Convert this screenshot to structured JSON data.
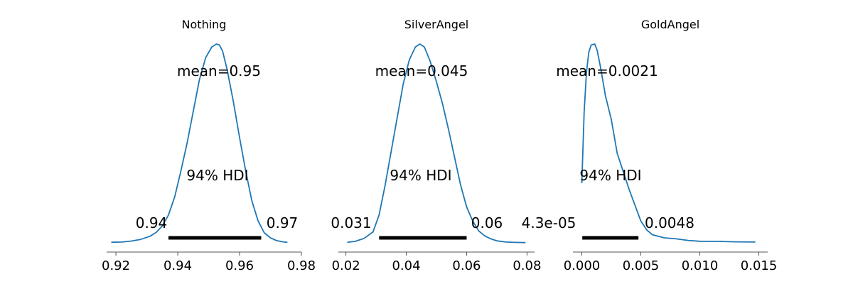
{
  "chart_data": [
    {
      "type": "area",
      "title": "Nothing",
      "mean_label": "mean=0.95",
      "hdi_label": "94% HDI",
      "hdi": {
        "low": 0.937,
        "high": 0.967,
        "low_label": "0.94",
        "high_label": "0.97"
      },
      "xlim": [
        0.917,
        0.98
      ],
      "xticks": [
        0.92,
        0.94,
        0.96,
        0.98
      ],
      "xtick_labels": [
        "0.92",
        "0.94",
        "0.96",
        "0.98"
      ],
      "density": {
        "x": [
          0.9185,
          0.922,
          0.925,
          0.928,
          0.931,
          0.933,
          0.935,
          0.937,
          0.939,
          0.941,
          0.943,
          0.945,
          0.947,
          0.949,
          0.951,
          0.9525,
          0.9535,
          0.9545,
          0.956,
          0.958,
          0.96,
          0.962,
          0.964,
          0.966,
          0.968,
          0.97,
          0.972,
          0.974,
          0.9755
        ],
        "y": [
          0.003,
          0.004,
          0.009,
          0.017,
          0.033,
          0.052,
          0.085,
          0.14,
          0.23,
          0.36,
          0.5,
          0.66,
          0.82,
          0.93,
          0.985,
          1.0,
          0.995,
          0.965,
          0.87,
          0.71,
          0.53,
          0.36,
          0.21,
          0.11,
          0.05,
          0.025,
          0.011,
          0.005,
          0.002
        ]
      },
      "ylim": [
        0,
        1.0
      ]
    },
    {
      "type": "area",
      "title": "SilverAngel",
      "mean_label": "mean=0.045",
      "hdi_label": "94% HDI",
      "hdi": {
        "low": 0.031,
        "high": 0.06,
        "low_label": "0.031",
        "high_label": "0.06"
      },
      "xlim": [
        0.0175,
        0.0825
      ],
      "xticks": [
        0.02,
        0.04,
        0.06,
        0.08
      ],
      "xtick_labels": [
        "0.02",
        "0.04",
        "0.06",
        "0.08"
      ],
      "density": {
        "x": [
          0.0205,
          0.023,
          0.026,
          0.029,
          0.031,
          0.033,
          0.035,
          0.037,
          0.039,
          0.041,
          0.043,
          0.0445,
          0.046,
          0.048,
          0.05,
          0.052,
          0.054,
          0.056,
          0.058,
          0.06,
          0.062,
          0.064,
          0.066,
          0.068,
          0.07,
          0.073,
          0.076,
          0.0795
        ],
        "y": [
          0.003,
          0.007,
          0.022,
          0.055,
          0.14,
          0.29,
          0.46,
          0.63,
          0.8,
          0.92,
          0.985,
          1.0,
          0.985,
          0.91,
          0.81,
          0.7,
          0.57,
          0.43,
          0.29,
          0.18,
          0.11,
          0.06,
          0.035,
          0.02,
          0.01,
          0.004,
          0.002,
          0.001
        ]
      },
      "ylim": [
        0,
        1.0
      ]
    },
    {
      "type": "area",
      "title": "GoldAngel",
      "mean_label": "mean=0.0021",
      "hdi_label": "94% HDI",
      "hdi": {
        "low": 4.3e-05,
        "high": 0.0048,
        "low_label": "4.3e-05",
        "high_label": "0.0048"
      },
      "xlim": [
        -0.00075,
        0.01575
      ],
      "xticks": [
        0.0,
        0.005,
        0.01,
        0.015
      ],
      "xtick_labels": [
        "0.000",
        "0.005",
        "0.010",
        "0.015"
      ],
      "density": {
        "x": [
          0.0,
          0.0002,
          0.0004,
          0.0006,
          0.0008,
          0.0011,
          0.0013,
          0.0016,
          0.002,
          0.0025,
          0.003,
          0.0035,
          0.004,
          0.0045,
          0.005,
          0.0055,
          0.006,
          0.007,
          0.008,
          0.009,
          0.01,
          0.0115,
          0.013,
          0.0147
        ],
        "y": [
          0.3,
          0.66,
          0.86,
          0.96,
          0.995,
          1.0,
          0.97,
          0.88,
          0.74,
          0.62,
          0.45,
          0.36,
          0.27,
          0.19,
          0.11,
          0.065,
          0.04,
          0.025,
          0.02,
          0.012,
          0.008,
          0.007,
          0.005,
          0.004
        ]
      },
      "ylim": [
        0,
        1.0
      ]
    }
  ],
  "colors": {
    "line": "#1f77b4",
    "hdi": "#000000",
    "axis": "#555555"
  }
}
